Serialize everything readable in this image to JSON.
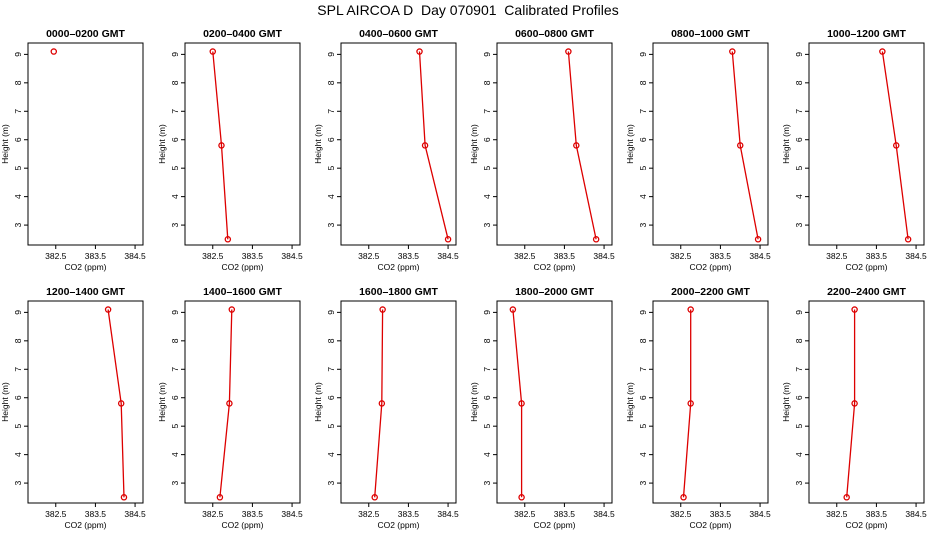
{
  "title": "SPL AIRCOA D  Day 070901  Calibrated Profiles",
  "colors": {
    "series": "#dd0000",
    "axis": "#000000",
    "background": "#ffffff"
  },
  "chart_data": [
    {
      "type": "line",
      "title": "0000–0200 GMT",
      "xlabel": "CO2 (ppm)",
      "ylabel": "Height (m)",
      "xlim": [
        381.8,
        384.7
      ],
      "ylim": [
        2.3,
        9.4
      ],
      "xticks": [
        382.5,
        383.5,
        384.5
      ],
      "xticklabels": [
        "382.5",
        "383.5",
        "384.5"
      ],
      "yticks": [
        3,
        4,
        5,
        6,
        7,
        8,
        9
      ],
      "x": [
        382.45
      ],
      "y": [
        9.1
      ]
    },
    {
      "type": "line",
      "title": "0200–0400 GMT",
      "xlabel": "CO2 (ppm)",
      "ylabel": "Height (m)",
      "xlim": [
        381.8,
        384.7
      ],
      "ylim": [
        2.3,
        9.4
      ],
      "xticks": [
        382.5,
        383.5,
        384.5
      ],
      "xticklabels": [
        "382.5",
        "383.5",
        "384.5"
      ],
      "yticks": [
        3,
        4,
        5,
        6,
        7,
        8,
        9
      ],
      "x": [
        382.5,
        382.72,
        382.88
      ],
      "y": [
        9.1,
        5.8,
        2.5
      ]
    },
    {
      "type": "line",
      "title": "0400–0600 GMT",
      "xlabel": "CO2 (ppm)",
      "ylabel": "Height (m)",
      "xlim": [
        381.8,
        384.7
      ],
      "ylim": [
        2.3,
        9.4
      ],
      "xticks": [
        382.5,
        383.5,
        384.5
      ],
      "xticklabels": [
        "382.5",
        "383.5",
        "384.5"
      ],
      "yticks": [
        3,
        4,
        5,
        6,
        7,
        8,
        9
      ],
      "x": [
        383.78,
        383.92,
        384.5
      ],
      "y": [
        9.1,
        5.8,
        2.5
      ]
    },
    {
      "type": "line",
      "title": "0600–0800 GMT",
      "xlabel": "CO2 (ppm)",
      "ylabel": "Height (m)",
      "xlim": [
        381.8,
        384.7
      ],
      "ylim": [
        2.3,
        9.4
      ],
      "xticks": [
        382.5,
        383.5,
        384.5
      ],
      "xticklabels": [
        "382.5",
        "383.5",
        "384.5"
      ],
      "yticks": [
        3,
        4,
        5,
        6,
        7,
        8,
        9
      ],
      "x": [
        383.6,
        383.8,
        384.3
      ],
      "y": [
        9.1,
        5.8,
        2.5
      ]
    },
    {
      "type": "line",
      "title": "0800–1000 GMT",
      "xlabel": "CO2 (ppm)",
      "ylabel": "Height (m)",
      "xlim": [
        381.8,
        384.7
      ],
      "ylim": [
        2.3,
        9.4
      ],
      "xticks": [
        382.5,
        383.5,
        384.5
      ],
      "xticklabels": [
        "382.5",
        "383.5",
        "384.5"
      ],
      "yticks": [
        3,
        4,
        5,
        6,
        7,
        8,
        9
      ],
      "x": [
        383.8,
        384.0,
        384.45
      ],
      "y": [
        9.1,
        5.8,
        2.5
      ]
    },
    {
      "type": "line",
      "title": "1000–1200 GMT",
      "xlabel": "CO2 (ppm)",
      "ylabel": "Height (m)",
      "xlim": [
        381.8,
        384.7
      ],
      "ylim": [
        2.3,
        9.4
      ],
      "xticks": [
        382.5,
        383.5,
        384.5
      ],
      "xticklabels": [
        "382.5",
        "383.5",
        "384.5"
      ],
      "yticks": [
        3,
        4,
        5,
        6,
        7,
        8,
        9
      ],
      "x": [
        383.65,
        384.0,
        384.3
      ],
      "y": [
        9.1,
        5.8,
        2.5
      ]
    },
    {
      "type": "line",
      "title": "1200–1400 GMT",
      "xlabel": "CO2 (ppm)",
      "ylabel": "Height (m)",
      "xlim": [
        381.8,
        384.7
      ],
      "ylim": [
        2.3,
        9.4
      ],
      "xticks": [
        382.5,
        383.5,
        384.5
      ],
      "xticklabels": [
        "382.5",
        "383.5",
        "384.5"
      ],
      "yticks": [
        3,
        4,
        5,
        6,
        7,
        8,
        9
      ],
      "x": [
        383.82,
        384.15,
        384.22
      ],
      "y": [
        9.1,
        5.8,
        2.5
      ]
    },
    {
      "type": "line",
      "title": "1400–1600 GMT",
      "xlabel": "CO2 (ppm)",
      "ylabel": "Height (m)",
      "xlim": [
        381.8,
        384.7
      ],
      "ylim": [
        2.3,
        9.4
      ],
      "xticks": [
        382.5,
        383.5,
        384.5
      ],
      "xticklabels": [
        "382.5",
        "383.5",
        "384.5"
      ],
      "yticks": [
        3,
        4,
        5,
        6,
        7,
        8,
        9
      ],
      "x": [
        382.98,
        382.92,
        382.68
      ],
      "y": [
        9.1,
        5.8,
        2.5
      ]
    },
    {
      "type": "line",
      "title": "1600–1800 GMT",
      "xlabel": "CO2 (ppm)",
      "ylabel": "Height (m)",
      "xlim": [
        381.8,
        384.7
      ],
      "ylim": [
        2.3,
        9.4
      ],
      "xticks": [
        382.5,
        383.5,
        384.5
      ],
      "xticklabels": [
        "382.5",
        "383.5",
        "384.5"
      ],
      "yticks": [
        3,
        4,
        5,
        6,
        7,
        8,
        9
      ],
      "x": [
        382.85,
        382.83,
        382.65
      ],
      "y": [
        9.1,
        5.8,
        2.5
      ]
    },
    {
      "type": "line",
      "title": "1800–2000 GMT",
      "xlabel": "CO2 (ppm)",
      "ylabel": "Height (m)",
      "xlim": [
        381.8,
        384.7
      ],
      "ylim": [
        2.3,
        9.4
      ],
      "xticks": [
        382.5,
        383.5,
        384.5
      ],
      "xticklabels": [
        "382.5",
        "383.5",
        "384.5"
      ],
      "yticks": [
        3,
        4,
        5,
        6,
        7,
        8,
        9
      ],
      "x": [
        382.2,
        382.42,
        382.42
      ],
      "y": [
        9.1,
        5.8,
        2.5
      ]
    },
    {
      "type": "line",
      "title": "2000–2200 GMT",
      "xlabel": "CO2 (ppm)",
      "ylabel": "Height (m)",
      "xlim": [
        381.8,
        384.7
      ],
      "ylim": [
        2.3,
        9.4
      ],
      "xticks": [
        382.5,
        383.5,
        384.5
      ],
      "xticklabels": [
        "382.5",
        "383.5",
        "384.5"
      ],
      "yticks": [
        3,
        4,
        5,
        6,
        7,
        8,
        9
      ],
      "x": [
        382.75,
        382.75,
        382.57
      ],
      "y": [
        9.1,
        5.8,
        2.5
      ]
    },
    {
      "type": "line",
      "title": "2200–2400 GMT",
      "xlabel": "CO2 (ppm)",
      "ylabel": "Height (m)",
      "xlim": [
        381.8,
        384.7
      ],
      "ylim": [
        2.3,
        9.4
      ],
      "xticks": [
        382.5,
        383.5,
        384.5
      ],
      "xticklabels": [
        "382.5",
        "383.5",
        "384.5"
      ],
      "yticks": [
        3,
        4,
        5,
        6,
        7,
        8,
        9
      ],
      "x": [
        382.95,
        382.95,
        382.75
      ],
      "y": [
        9.1,
        5.8,
        2.5
      ]
    }
  ]
}
